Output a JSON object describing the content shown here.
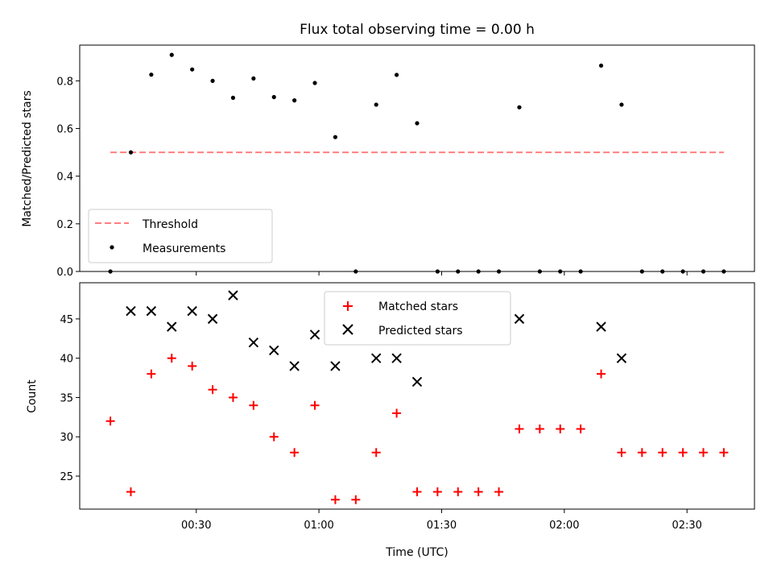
{
  "chart_data": {
    "title": "Flux total observing time = 0.00 h",
    "xlabel": "Time (UTC)",
    "x_unit": "minutes after 00:00 UTC",
    "x_ticks": [
      {
        "value": 30,
        "label": "00:30"
      },
      {
        "value": 60,
        "label": "01:00"
      },
      {
        "value": 90,
        "label": "01:30"
      },
      {
        "value": 120,
        "label": "02:00"
      },
      {
        "value": 150,
        "label": "02:30"
      }
    ],
    "xlim": [
      1.5,
      166.5
    ],
    "panels": [
      {
        "type": "scatter",
        "ylabel": "Matched/Predicted stars",
        "ylim": [
          0.0,
          0.95
        ],
        "y_ticks": [
          {
            "value": 0.0,
            "label": "0.0"
          },
          {
            "value": 0.2,
            "label": "0.2"
          },
          {
            "value": 0.4,
            "label": "0.4"
          },
          {
            "value": 0.6,
            "label": "0.6"
          },
          {
            "value": 0.8,
            "label": "0.8"
          }
        ],
        "legend_position": "lower-left",
        "threshold": {
          "name": "Threshold",
          "value": 0.5,
          "x_range": [
            9,
            159
          ],
          "color": "#ff7f7f"
        },
        "series": [
          {
            "name": "Measurements",
            "marker": "dot",
            "color": "#000000",
            "points": [
              [
                9,
                0.0
              ],
              [
                14,
                0.5
              ],
              [
                19,
                0.826
              ],
              [
                24,
                0.909
              ],
              [
                29,
                0.848
              ],
              [
                34,
                0.8
              ],
              [
                39,
                0.729
              ],
              [
                44,
                0.81
              ],
              [
                49,
                0.732
              ],
              [
                54,
                0.718
              ],
              [
                59,
                0.791
              ],
              [
                64,
                0.564
              ],
              [
                69,
                0.0
              ],
              [
                74,
                0.7
              ],
              [
                79,
                0.825
              ],
              [
                84,
                0.622
              ],
              [
                89,
                0.0
              ],
              [
                94,
                0.0
              ],
              [
                99,
                0.0
              ],
              [
                104,
                0.0
              ],
              [
                109,
                0.689
              ],
              [
                114,
                0.0
              ],
              [
                119,
                0.0
              ],
              [
                124,
                0.0
              ],
              [
                129,
                0.864
              ],
              [
                134,
                0.7
              ],
              [
                139,
                0.0
              ],
              [
                144,
                0.0
              ],
              [
                149,
                0.0
              ],
              [
                154,
                0.0
              ],
              [
                159,
                0.0
              ]
            ]
          }
        ]
      },
      {
        "type": "scatter",
        "ylabel": "Count",
        "ylim": [
          20.8,
          49.6
        ],
        "y_ticks": [
          {
            "value": 25,
            "label": "25"
          },
          {
            "value": 30,
            "label": "30"
          },
          {
            "value": 35,
            "label": "35"
          },
          {
            "value": 40,
            "label": "40"
          },
          {
            "value": 45,
            "label": "45"
          }
        ],
        "legend_position": "upper-center",
        "series": [
          {
            "name": "Matched stars",
            "marker": "plus",
            "color": "#ff0000",
            "points": [
              [
                9,
                32
              ],
              [
                14,
                23
              ],
              [
                19,
                38
              ],
              [
                24,
                40
              ],
              [
                29,
                39
              ],
              [
                34,
                36
              ],
              [
                39,
                35
              ],
              [
                44,
                34
              ],
              [
                49,
                30
              ],
              [
                54,
                28
              ],
              [
                59,
                34
              ],
              [
                64,
                22
              ],
              [
                69,
                22
              ],
              [
                74,
                28
              ],
              [
                79,
                33
              ],
              [
                84,
                23
              ],
              [
                89,
                23
              ],
              [
                94,
                23
              ],
              [
                99,
                23
              ],
              [
                104,
                23
              ],
              [
                109,
                31
              ],
              [
                114,
                31
              ],
              [
                119,
                31
              ],
              [
                124,
                31
              ],
              [
                129,
                38
              ],
              [
                134,
                28
              ],
              [
                139,
                28
              ],
              [
                144,
                28
              ],
              [
                149,
                28
              ],
              [
                154,
                28
              ],
              [
                159,
                28
              ]
            ]
          },
          {
            "name": "Predicted stars",
            "marker": "x",
            "color": "#000000",
            "points": [
              [
                14,
                46
              ],
              [
                19,
                46
              ],
              [
                24,
                44
              ],
              [
                29,
                46
              ],
              [
                34,
                45
              ],
              [
                39,
                48
              ],
              [
                44,
                42
              ],
              [
                49,
                41
              ],
              [
                54,
                39
              ],
              [
                59,
                43
              ],
              [
                64,
                39
              ],
              [
                74,
                40
              ],
              [
                79,
                40
              ],
              [
                84,
                37
              ],
              [
                109,
                45
              ],
              [
                129,
                44
              ],
              [
                134,
                40
              ]
            ]
          }
        ]
      }
    ]
  }
}
